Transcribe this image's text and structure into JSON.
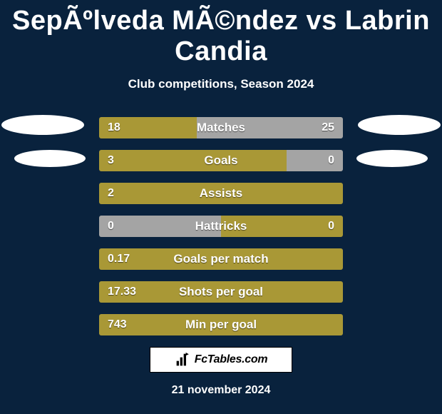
{
  "title": "SepÃºlveda MÃ©ndez vs Labrin Candia",
  "subtitle": "Club competitions, Season 2024",
  "date": "21 november 2024",
  "watermark_text": "FcTables.com",
  "colors": {
    "background": "#09223d",
    "bar_primary": "#a99836",
    "bar_secondary": "#a4a4a4",
    "ellipse": "#ffffff"
  },
  "rows": [
    {
      "label": "Matches",
      "left_val": "18",
      "right_val": "25",
      "left_pct": 40,
      "left_color": "#a99836",
      "right_pct": 60,
      "right_color": "#a4a4a4"
    },
    {
      "label": "Goals",
      "left_val": "3",
      "right_val": "0",
      "left_pct": 77,
      "left_color": "#a99836",
      "right_pct": 23,
      "right_color": "#a4a4a4"
    },
    {
      "label": "Assists",
      "left_val": "2",
      "right_val": "",
      "left_pct": 100,
      "left_color": "#a99836",
      "right_pct": 0,
      "right_color": "#a4a4a4"
    },
    {
      "label": "Hattricks",
      "left_val": "0",
      "right_val": "0",
      "left_pct": 50,
      "left_color": "#a4a4a4",
      "right_pct": 50,
      "right_color": "#a99836"
    },
    {
      "label": "Goals per match",
      "left_val": "0.17",
      "right_val": "",
      "left_pct": 100,
      "left_color": "#a99836",
      "right_pct": 0,
      "right_color": "#a4a4a4"
    },
    {
      "label": "Shots per goal",
      "left_val": "17.33",
      "right_val": "",
      "left_pct": 100,
      "left_color": "#a99836",
      "right_pct": 0,
      "right_color": "#a4a4a4"
    },
    {
      "label": "Min per goal",
      "left_val": "743",
      "right_val": "",
      "left_pct": 100,
      "left_color": "#a99836",
      "right_pct": 0,
      "right_color": "#a4a4a4"
    }
  ]
}
